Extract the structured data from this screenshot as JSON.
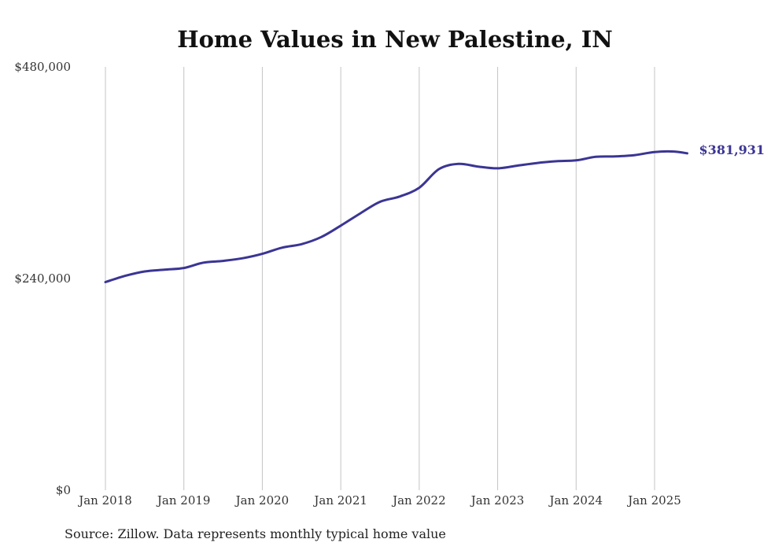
{
  "chart_data": {
    "type": "line",
    "title": "Home Values in New Palestine, IN",
    "xlabel": "",
    "ylabel": "",
    "ylim": [
      0,
      480000
    ],
    "y_ticks": [
      {
        "value": 0,
        "label": "$0"
      },
      {
        "value": 240000,
        "label": "$240,000"
      },
      {
        "value": 480000,
        "label": "$480,000"
      }
    ],
    "x_ticks": [
      {
        "value": "2018-01",
        "label": "Jan 2018"
      },
      {
        "value": "2019-01",
        "label": "Jan 2019"
      },
      {
        "value": "2020-01",
        "label": "Jan 2020"
      },
      {
        "value": "2021-01",
        "label": "Jan 2021"
      },
      {
        "value": "2022-01",
        "label": "Jan 2022"
      },
      {
        "value": "2023-01",
        "label": "Jan 2023"
      },
      {
        "value": "2024-01",
        "label": "Jan 2024"
      },
      {
        "value": "2025-01",
        "label": "Jan 2025"
      }
    ],
    "grid": "vertical",
    "line_color": "#3b3594",
    "series": [
      {
        "x": [
          "2018-01",
          "2018-04",
          "2018-07",
          "2018-10",
          "2019-01",
          "2019-04",
          "2019-07",
          "2019-10",
          "2020-01",
          "2020-04",
          "2020-07",
          "2020-10",
          "2021-01",
          "2021-04",
          "2021-07",
          "2021-10",
          "2022-01",
          "2022-04",
          "2022-07",
          "2022-10",
          "2023-01",
          "2023-04",
          "2023-07",
          "2023-10",
          "2024-01",
          "2024-04",
          "2024-07",
          "2024-10",
          "2025-01",
          "2025-04",
          "2025-06"
        ],
        "y": [
          236000,
          243000,
          248000,
          250000,
          252000,
          258000,
          260000,
          263000,
          268000,
          275000,
          279000,
          287000,
          300000,
          314000,
          327000,
          333000,
          343000,
          364000,
          370000,
          367000,
          365000,
          368000,
          371000,
          373000,
          374000,
          378000,
          378500,
          380000,
          383500,
          384000,
          381931
        ]
      }
    ],
    "end_label": "$381,931",
    "source": "Source: Zillow. Data represents monthly typical home value"
  }
}
